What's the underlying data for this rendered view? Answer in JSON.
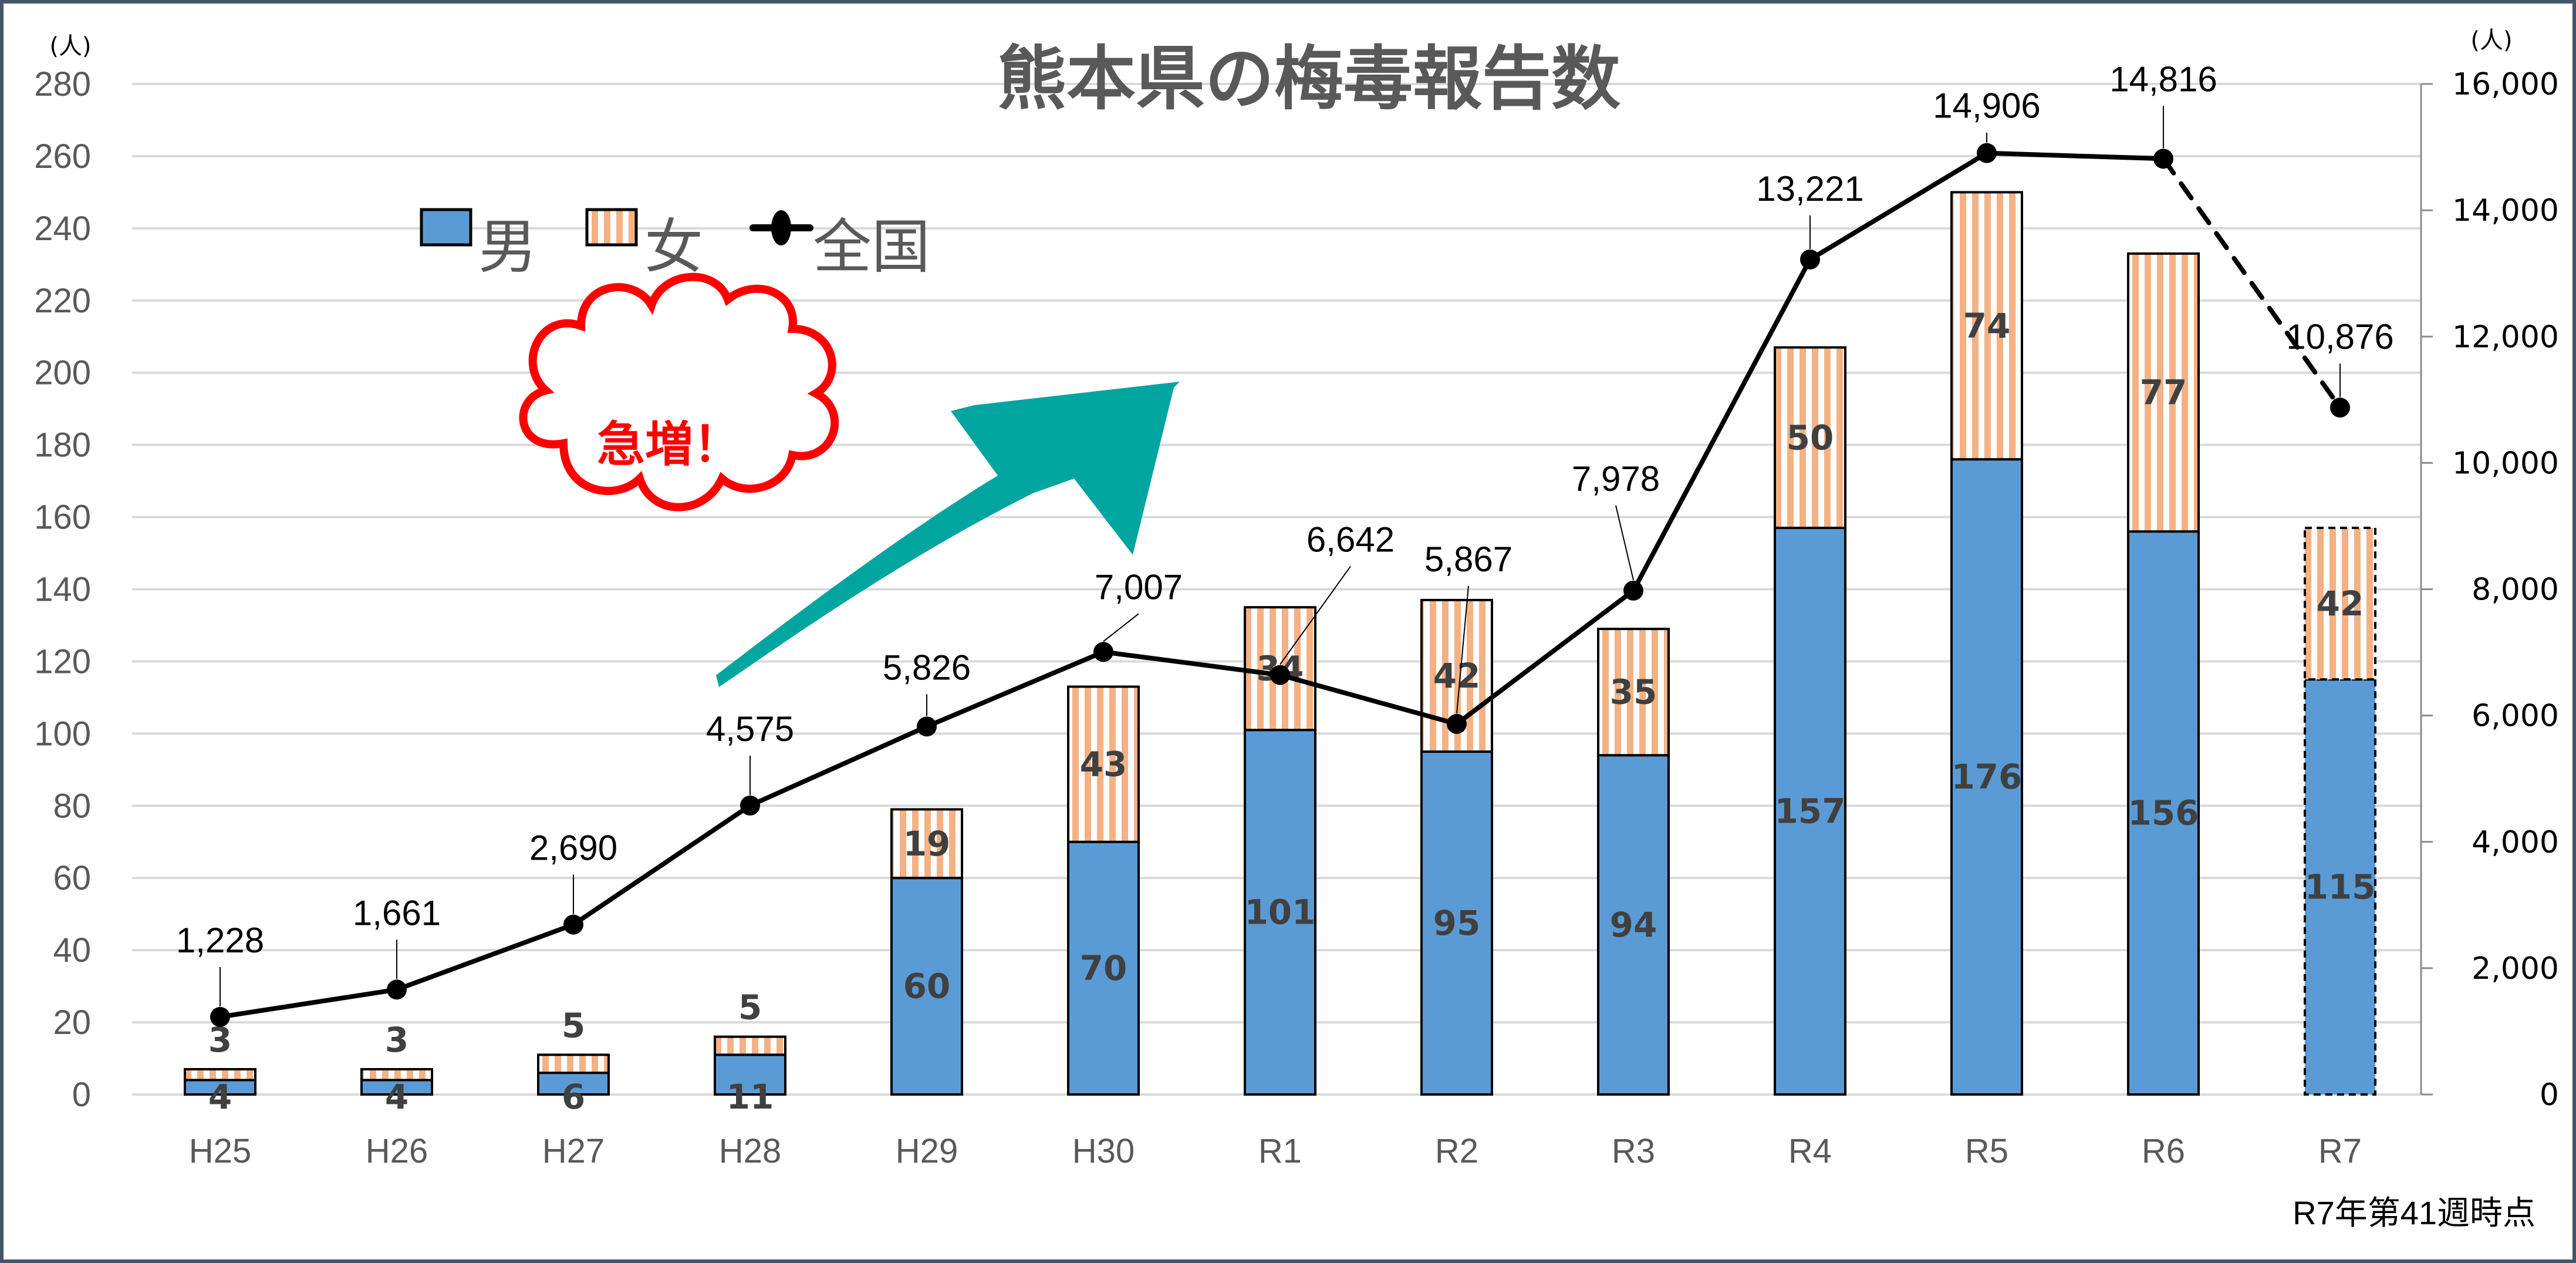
{
  "chart_data": {
    "type": "bar",
    "subtype": "stacked bar + line (secondary axis)",
    "title": "熊本県の梅毒報告数",
    "categories": [
      "H25",
      "H26",
      "H27",
      "H28",
      "H29",
      "H30",
      "R1",
      "R2",
      "R3",
      "R4",
      "R5",
      "R6",
      "R7"
    ],
    "series": [
      {
        "name": "男",
        "type": "bar",
        "axis": "left",
        "color": "#5b9bd5",
        "values": [
          4,
          4,
          6,
          11,
          60,
          70,
          101,
          95,
          94,
          157,
          176,
          156,
          115
        ]
      },
      {
        "name": "女",
        "type": "bar",
        "axis": "left",
        "color": "#f4b183",
        "pattern": "vertical-stripes",
        "values": [
          3,
          3,
          5,
          5,
          19,
          43,
          34,
          42,
          35,
          50,
          74,
          77,
          42
        ]
      },
      {
        "name": "全国",
        "type": "line",
        "axis": "right",
        "color": "#000000",
        "marker": "circle",
        "values": [
          1228,
          1661,
          2690,
          4575,
          5826,
          7007,
          6642,
          5867,
          7978,
          13221,
          14906,
          14816,
          10876
        ],
        "last_segment_dashed": true
      }
    ],
    "y_left": {
      "label": "(人)",
      "min": 0,
      "max": 280,
      "step": 20,
      "ticks": [
        0,
        20,
        40,
        60,
        80,
        100,
        120,
        140,
        160,
        180,
        200,
        220,
        240,
        260,
        280
      ]
    },
    "y_right": {
      "label": "(人)",
      "min": 0,
      "max": 16000,
      "step": 2000,
      "ticks": [
        "0",
        "2,000",
        "4,000",
        "6,000",
        "8,000",
        "10,000",
        "12,000",
        "14,000",
        "16,000"
      ]
    },
    "xlabel": "",
    "legend": {
      "position": "top-left",
      "entries": [
        "男",
        "女",
        "全国"
      ]
    },
    "grid": true,
    "annotations": [
      "急増！",
      "R7年第41週時点"
    ]
  },
  "labels": {
    "title": "熊本県の梅毒報告数",
    "unit_left": "(人)",
    "unit_right": "(人)",
    "legend_male": "男",
    "legend_female": "女",
    "legend_national": "全国",
    "burst_text": "急増！",
    "footnote": "R7年第41週時点"
  },
  "colors": {
    "male": "#5b9bd5",
    "female": "#f4b183",
    "arrow": "#00a59f",
    "burst_outline": "#ff0000",
    "frame": "#44546a",
    "grid": "#d9d9d9"
  }
}
